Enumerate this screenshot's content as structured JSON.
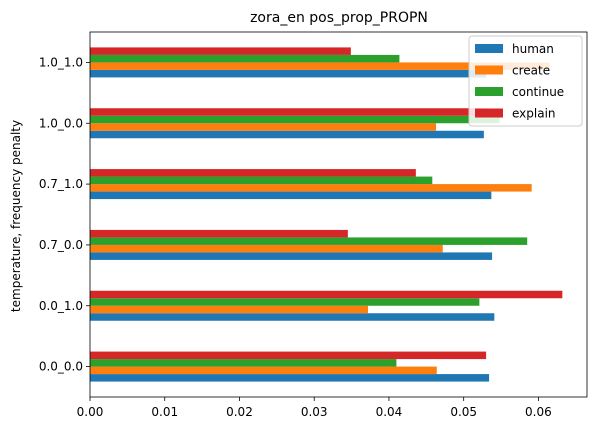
{
  "chart_data": {
    "type": "bar",
    "orientation": "horizontal",
    "title": "zora_en pos_prop_PROPN",
    "xlabel": "",
    "ylabel": "temperature, frequency penalty",
    "categories": [
      "0.0_0.0",
      "0.0_1.0",
      "0.7_0.0",
      "0.7_1.0",
      "1.0_0.0",
      "1.0_1.0"
    ],
    "xlim": [
      0,
      0.0665
    ],
    "xticks": [
      "0.00",
      "0.01",
      "0.02",
      "0.03",
      "0.04",
      "0.05",
      "0.06"
    ],
    "grid": false,
    "legend_position": "top-right",
    "series": [
      {
        "name": "human",
        "color": "#1f77b4",
        "values": [
          0.0534,
          0.0541,
          0.0538,
          0.0537,
          0.0527,
          0.053
        ]
      },
      {
        "name": "create",
        "color": "#ff7f0e",
        "values": [
          0.0464,
          0.0372,
          0.0472,
          0.0591,
          0.0463,
          0.0615
        ]
      },
      {
        "name": "continue",
        "color": "#2ca02c",
        "values": [
          0.041,
          0.0521,
          0.0585,
          0.0458,
          0.0548,
          0.0414
        ]
      },
      {
        "name": "explain",
        "color": "#d62728",
        "values": [
          0.053,
          0.0632,
          0.0345,
          0.0436,
          0.0535,
          0.0349
        ]
      }
    ]
  }
}
